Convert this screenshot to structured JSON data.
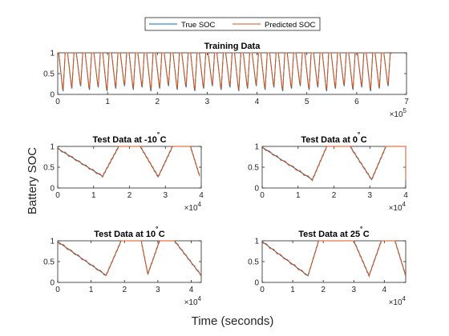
{
  "figure": {
    "ylabel": "Battery SOC",
    "xlabel": "Time (seconds)"
  },
  "legend": {
    "placement": "top-center",
    "entries": [
      {
        "label": "True SOC",
        "color": "#0072BD"
      },
      {
        "label": "Predicted SOC",
        "color": "#D95319"
      }
    ]
  },
  "chart_data": [
    {
      "type": "line",
      "title": "Training Data",
      "xlim": [
        0,
        700000
      ],
      "ylim": [
        0,
        1
      ],
      "xticks": [
        0,
        1,
        2,
        3,
        4,
        5,
        6,
        7
      ],
      "yticks": [
        0,
        0.5,
        1
      ],
      "xscale_label": "×10^5",
      "xscale_base": "10",
      "xscale_exp": "5",
      "cycles": 38,
      "x_end": 670000,
      "series": [
        {
          "name": "True SOC",
          "color": "#0072BD"
        },
        {
          "name": "Predicted SOC",
          "color": "#D95319"
        }
      ]
    },
    {
      "type": "line",
      "title": "Test Data at -10˚C",
      "title_main": "Test Data at -10",
      "title_deg": "˚",
      "title_unit": "C",
      "xlim": [
        0,
        40000
      ],
      "ylim": [
        0,
        1
      ],
      "xticks": [
        0,
        1,
        2,
        3,
        4
      ],
      "yticks": [
        0,
        0.5,
        1
      ],
      "xscale_base": "10",
      "xscale_exp": "4",
      "points": [
        [
          0,
          0.95
        ],
        [
          12500,
          0.28
        ],
        [
          17000,
          1.0
        ],
        [
          23000,
          1.0
        ],
        [
          28000,
          0.27
        ],
        [
          32000,
          1.0
        ],
        [
          37000,
          1.0
        ],
        [
          39500,
          0.3
        ]
      ]
    },
    {
      "type": "line",
      "title": "Test Data at 0˚C",
      "title_main": "Test Data at 0",
      "title_deg": "˚",
      "title_unit": "C",
      "xlim": [
        0,
        40000
      ],
      "ylim": [
        0,
        1
      ],
      "xticks": [
        0,
        1,
        2,
        3,
        4
      ],
      "yticks": [
        0,
        0.5,
        1
      ],
      "xscale_base": "10",
      "xscale_exp": "4",
      "points": [
        [
          0,
          0.98
        ],
        [
          14000,
          0.2
        ],
        [
          18000,
          1.0
        ],
        [
          24500,
          1.0
        ],
        [
          30500,
          0.2
        ],
        [
          34500,
          1.0
        ],
        [
          40000,
          1.0
        ],
        [
          43000,
          0.22
        ]
      ]
    },
    {
      "type": "line",
      "title": "Test Data at 10˚C",
      "title_main": "Test Data at 10",
      "title_deg": "˚",
      "title_unit": "C",
      "xlim": [
        0,
        43000
      ],
      "ylim": [
        0,
        1
      ],
      "xticks": [
        0,
        1,
        2,
        3,
        4
      ],
      "yticks": [
        0,
        0.5,
        1
      ],
      "xscale_base": "10",
      "xscale_exp": "4",
      "points": [
        [
          0,
          0.98
        ],
        [
          14500,
          0.17
        ],
        [
          19000,
          1.0
        ],
        [
          25000,
          1.0
        ],
        [
          27000,
          0.2
        ],
        [
          30500,
          1.0
        ],
        [
          35000,
          1.0
        ],
        [
          43000,
          0.17
        ]
      ]
    },
    {
      "type": "line",
      "title": "Test Data at 25˚C",
      "title_main": "Test Data at 25",
      "title_deg": "˚",
      "title_unit": "C",
      "xlim": [
        0,
        47000
      ],
      "ylim": [
        0,
        1
      ],
      "xticks": [
        0,
        1,
        2,
        3,
        4
      ],
      "yticks": [
        0,
        0.5,
        1
      ],
      "xscale_base": "10",
      "xscale_exp": "4",
      "points": [
        [
          0,
          0.98
        ],
        [
          15000,
          0.16
        ],
        [
          18500,
          1.0
        ],
        [
          30000,
          1.0
        ],
        [
          35000,
          0.16
        ],
        [
          39000,
          1.0
        ],
        [
          43500,
          1.0
        ],
        [
          47000,
          0.16
        ]
      ]
    }
  ]
}
